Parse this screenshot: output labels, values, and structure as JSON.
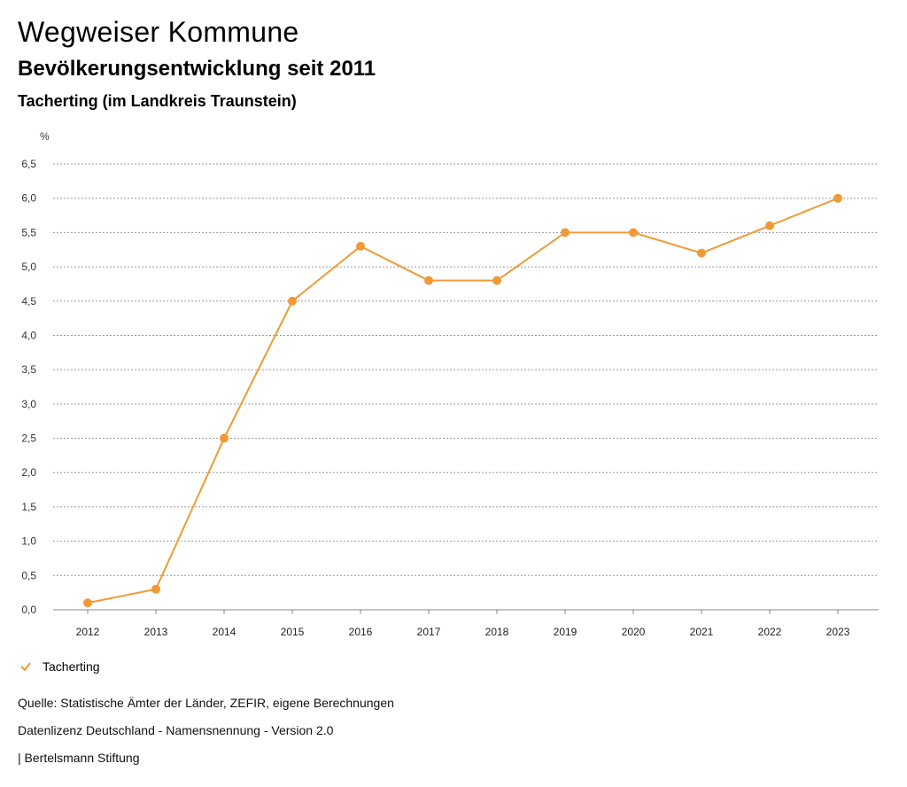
{
  "header": {
    "title": "Wegweiser Kommune",
    "subtitle": "Bevölkerungsentwicklung seit 2011",
    "region": "Tacherting (im Landkreis Traunstein)"
  },
  "chart_data": {
    "type": "line",
    "ylabel": "%",
    "x": [
      "2012",
      "2013",
      "2014",
      "2015",
      "2016",
      "2017",
      "2018",
      "2019",
      "2020",
      "2021",
      "2022",
      "2023"
    ],
    "series": [
      {
        "name": "Tacherting",
        "color": "#f09a37",
        "values": [
          0.1,
          0.3,
          2.5,
          4.5,
          5.3,
          4.8,
          4.8,
          5.5,
          5.5,
          5.2,
          5.6,
          6.0
        ]
      }
    ],
    "ylim": [
      0,
      6.5
    ],
    "yticks": [
      "0,0",
      "0,5",
      "1,0",
      "1,5",
      "2,0",
      "2,5",
      "3,0",
      "3,5",
      "4,0",
      "4,5",
      "5,0",
      "5,5",
      "6,0",
      "6,5"
    ],
    "grid": true,
    "legend": "bottom-left"
  },
  "footer": {
    "source": "Quelle: Statistische Ämter der Länder, ZEFIR, eigene Berechnungen",
    "license": "Datenlizenz Deutschland - Namensnennung - Version 2.0",
    "publisher": "| Bertelsmann Stiftung"
  }
}
